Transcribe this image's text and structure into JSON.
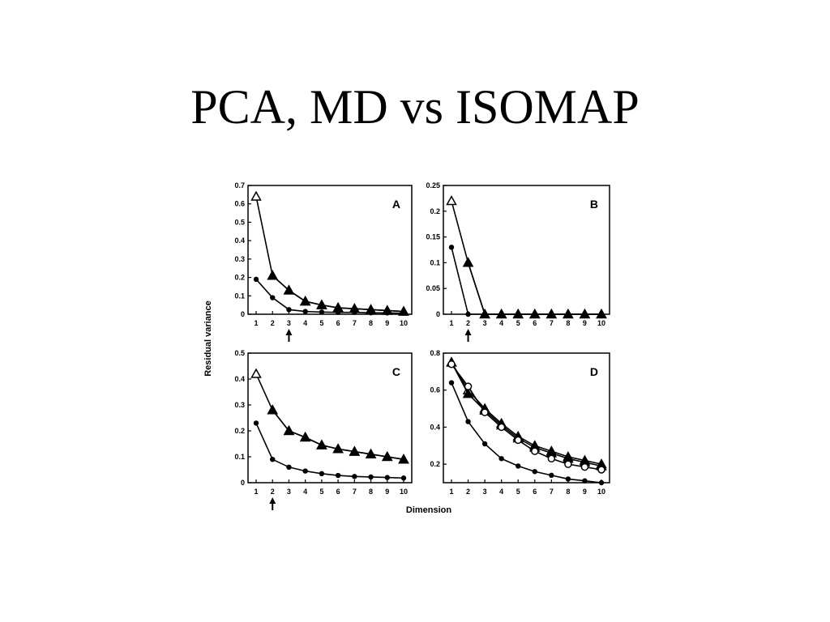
{
  "slide": {
    "title": "PCA, MD vs ISOMAP"
  },
  "chart_data": {
    "type": "line",
    "ylabel": "Residual variance",
    "xlabel": "Dimension",
    "x": [
      1,
      2,
      3,
      4,
      5,
      6,
      7,
      8,
      9,
      10
    ],
    "panels": [
      {
        "letter": "A",
        "ylim": [
          0,
          0.7
        ],
        "yticks": [
          "0",
          "0.1",
          "0.2",
          "0.3",
          "0.4",
          "0.5",
          "0.6",
          "0.7"
        ],
        "arrow_at": 3,
        "series": [
          {
            "marker": "triangle-open",
            "values": [
              0.64,
              0.21,
              0.13,
              0.07,
              0.05,
              0.035,
              0.03,
              0.025,
              0.02,
              0.015
            ]
          },
          {
            "marker": "triangle-filled",
            "values": [
              null,
              0.21,
              0.13,
              0.07,
              0.05,
              0.035,
              0.03,
              0.025,
              0.02,
              0.015
            ]
          },
          {
            "marker": "dot",
            "values": [
              0.19,
              0.09,
              0.025,
              0.015,
              0.012,
              0.01,
              0.01,
              0.008,
              0.007,
              0.006
            ]
          }
        ]
      },
      {
        "letter": "B",
        "ylim": [
          0,
          0.25
        ],
        "yticks": [
          "0",
          "0.05",
          "0.1",
          "0.15",
          "0.2",
          "0.25"
        ],
        "arrow_at": 2,
        "series": [
          {
            "marker": "triangle-open",
            "values": [
              0.22,
              0.1,
              0,
              0,
              0,
              0,
              0,
              0,
              0,
              0
            ]
          },
          {
            "marker": "triangle-filled",
            "values": [
              null,
              0.1,
              0,
              0,
              0,
              0,
              0,
              0,
              0,
              0
            ]
          },
          {
            "marker": "dot",
            "values": [
              0.13,
              0,
              0,
              0,
              0,
              0,
              0,
              0,
              0,
              0
            ]
          }
        ]
      },
      {
        "letter": "C",
        "ylim": [
          0,
          0.5
        ],
        "yticks": [
          "0",
          "0.1",
          "0.2",
          "0.3",
          "0.4",
          "0.5"
        ],
        "arrow_at": 2,
        "series": [
          {
            "marker": "triangle-open",
            "values": [
              0.42,
              0.28,
              0.2,
              0.175,
              0.145,
              0.13,
              0.12,
              0.11,
              0.1,
              0.09
            ]
          },
          {
            "marker": "triangle-filled",
            "values": [
              null,
              0.28,
              0.2,
              0.175,
              0.145,
              0.13,
              0.12,
              0.11,
              0.1,
              0.09
            ]
          },
          {
            "marker": "dot",
            "values": [
              0.23,
              0.09,
              0.06,
              0.045,
              0.035,
              0.028,
              0.024,
              0.022,
              0.02,
              0.018
            ]
          }
        ]
      },
      {
        "letter": "D",
        "ylim": [
          0.1,
          0.8
        ],
        "yticks": [
          "0.2",
          "0.4",
          "0.6",
          "0.8"
        ],
        "ytick_values": [
          0.2,
          0.4,
          0.6,
          0.8
        ],
        "arrow_at": null,
        "series": [
          {
            "marker": "triangle-open",
            "values": [
              0.75,
              0.6,
              0.5,
              0.42,
              0.35,
              0.3,
              0.27,
              0.24,
              0.22,
              0.2
            ]
          },
          {
            "marker": "triangle-filled",
            "values": [
              0.75,
              0.58,
              0.49,
              0.41,
              0.34,
              0.29,
              0.26,
              0.23,
              0.21,
              0.19
            ]
          },
          {
            "marker": "circle-open",
            "values": [
              0.74,
              0.62,
              0.48,
              0.4,
              0.33,
              0.27,
              0.23,
              0.2,
              0.185,
              0.17
            ]
          },
          {
            "marker": "dot",
            "values": [
              0.64,
              0.43,
              0.31,
              0.23,
              0.19,
              0.16,
              0.14,
              0.12,
              0.11,
              0.1
            ]
          }
        ]
      }
    ]
  }
}
